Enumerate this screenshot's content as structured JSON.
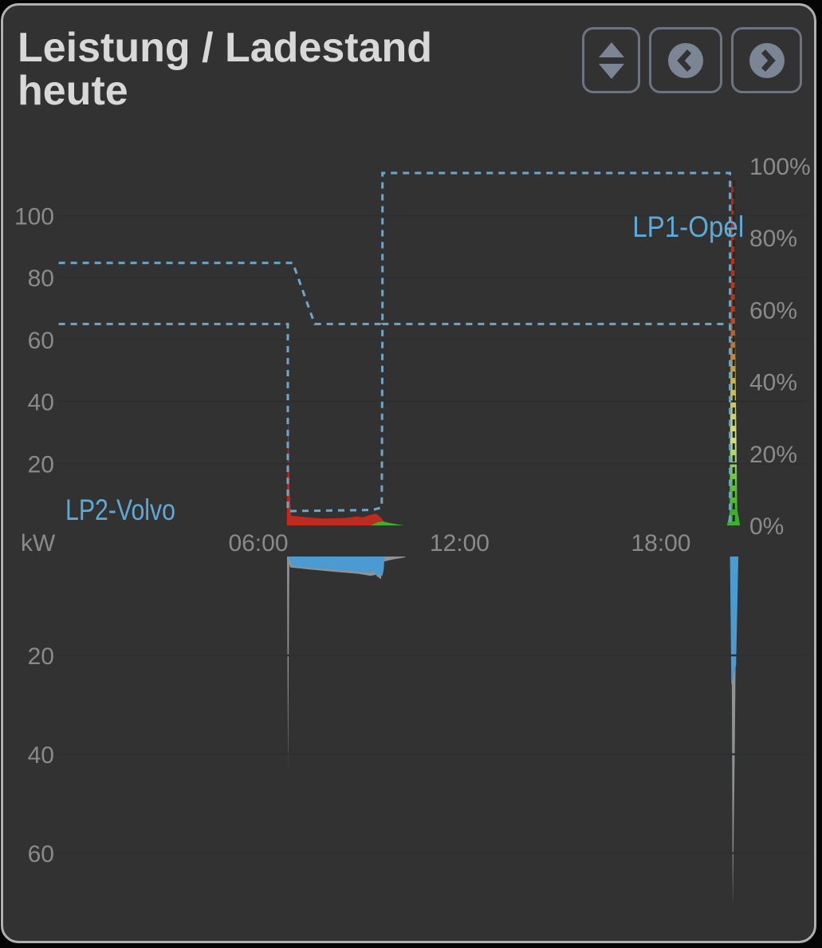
{
  "card": {
    "title": "Leistung / Ladestand heute"
  },
  "toolbar": {
    "buttons": [
      {
        "id": "scale",
        "icon": "up-down-triangles-icon"
      },
      {
        "id": "prev",
        "icon": "chevron-left-circle-icon"
      },
      {
        "id": "next",
        "icon": "chevron-right-circle-icon"
      }
    ]
  },
  "colors": {
    "charging_red": "#bf2a1e",
    "pv_green": "#3fae2e",
    "discharge_blue": "#4b9bd2",
    "aux_gray": "#8f9393",
    "soc_line_blue": "#6ea6c8",
    "soc_label_blue": "#5ea9d6"
  },
  "chart_data": {
    "type": "area",
    "title": "Leistung / Ladestand heute",
    "x_axis": {
      "unit": "time",
      "range_hours": [
        0,
        22.3
      ],
      "ticks": [
        {
          "h": 6,
          "label": "06:00"
        },
        {
          "h": 12,
          "label": "12:00"
        },
        {
          "h": 18,
          "label": "18:00"
        }
      ]
    },
    "y_axis_power_top": {
      "unit_label": "kW",
      "range": [
        0,
        115
      ],
      "ticks": [
        {
          "v": 20,
          "label": "20"
        },
        {
          "v": 40,
          "label": "40"
        },
        {
          "v": 60,
          "label": "60"
        },
        {
          "v": 80,
          "label": "80"
        },
        {
          "v": 100,
          "label": "100"
        }
      ]
    },
    "y_axis_power_bottom": {
      "unit_label": "kW",
      "range": [
        0,
        -77
      ],
      "ticks": [
        {
          "v": 20,
          "label": "20"
        },
        {
          "v": 40,
          "label": "40"
        },
        {
          "v": 60,
          "label": "60"
        }
      ]
    },
    "y_axis_soc": {
      "unit_label": "%",
      "range": [
        0,
        100
      ],
      "ticks": [
        {
          "v": 0,
          "label": "0%"
        },
        {
          "v": 20,
          "label": "20%"
        },
        {
          "v": 40,
          "label": "40%"
        },
        {
          "v": 60,
          "label": "60%"
        },
        {
          "v": 80,
          "label": "80%"
        },
        {
          "v": 100,
          "label": "100%"
        }
      ]
    },
    "soc_lines": [
      {
        "name": "lp1-opel",
        "label": {
          "text": "LP1-Opel",
          "h": 17.15,
          "pct": 80.3,
          "text_length": 140
        },
        "color": "#6ea6c8",
        "points": [
          [
            0.05,
            73
          ],
          [
            7.03,
            73
          ],
          [
            7.68,
            56
          ],
          [
            9.7,
            56
          ],
          [
            9.7,
            98
          ],
          [
            20.06,
            98
          ],
          [
            20.06,
            0.5
          ]
        ]
      },
      {
        "name": "lp2-volvo",
        "label": {
          "text": "LP2-Volvo",
          "h": 0.25,
          "pct": 1.55,
          "text_length": 138
        },
        "color": "#6ea6c8",
        "points": [
          [
            0.05,
            56
          ],
          [
            6.88,
            56
          ],
          [
            6.88,
            4
          ],
          [
            9.4,
            4.3
          ],
          [
            9.68,
            5
          ],
          [
            9.7,
            56
          ],
          [
            20.06,
            56
          ]
        ]
      }
    ],
    "soc_drop_overlay": {
      "h": 20.17,
      "from_pct": 96,
      "to_pct": 1,
      "color": "#222a18"
    },
    "power_areas_top": [
      {
        "name": "charge-morning-red",
        "color": "#bf2a1e",
        "points": [
          [
            6.85,
            0
          ],
          [
            6.89,
            38.5
          ],
          [
            6.93,
            12
          ],
          [
            6.98,
            3.2
          ],
          [
            7.45,
            2.6
          ],
          [
            7.9,
            2.2
          ],
          [
            8.6,
            2.4
          ],
          [
            8.95,
            2.9
          ],
          [
            9.1,
            2.6
          ],
          [
            9.35,
            3.4
          ],
          [
            9.5,
            3.8
          ],
          [
            9.62,
            2.9
          ],
          [
            9.7,
            1.9
          ],
          [
            9.76,
            0.9
          ],
          [
            9.78,
            0
          ]
        ]
      },
      {
        "name": "pv-morning-green",
        "color": "#3fae2e",
        "points": [
          [
            9.35,
            0
          ],
          [
            9.55,
            1.0
          ],
          [
            9.7,
            1.3
          ],
          [
            9.95,
            0.7
          ],
          [
            10.25,
            0.15
          ],
          [
            10.35,
            0
          ]
        ]
      },
      {
        "name": "evening-spike-gradient",
        "gradient": [
          [
            "0%",
            "#b3261d"
          ],
          [
            "38%",
            "#b23a20"
          ],
          [
            "58%",
            "#c4b35c"
          ],
          [
            "75%",
            "#cfe08a"
          ],
          [
            "88%",
            "#5fc03a"
          ],
          [
            "100%",
            "#3cad2e"
          ]
        ],
        "points": [
          [
            20.05,
            0
          ],
          [
            20.1,
            111
          ],
          [
            20.16,
            111
          ],
          [
            20.28,
            0
          ]
        ]
      },
      {
        "name": "evening-green-base",
        "color": "#3fae2e",
        "points": [
          [
            19.97,
            0
          ],
          [
            20.1,
            6.5
          ],
          [
            20.27,
            5.5
          ],
          [
            20.36,
            0
          ]
        ]
      }
    ],
    "power_areas_bottom": [
      {
        "name": "morning-gray-spike",
        "color": "#8f9393",
        "points": [
          [
            6.855,
            0
          ],
          [
            6.885,
            -43.2
          ],
          [
            6.92,
            -5
          ],
          [
            6.93,
            0
          ]
        ]
      },
      {
        "name": "morning-gray-band",
        "color": "#8f9393",
        "points": [
          [
            6.87,
            0
          ],
          [
            6.95,
            -2.2
          ],
          [
            7.5,
            -2.6
          ],
          [
            8.3,
            -3.1
          ],
          [
            9.0,
            -3.5
          ],
          [
            9.35,
            -3.9
          ],
          [
            9.5,
            -3.7
          ],
          [
            9.65,
            -4.6
          ],
          [
            9.75,
            -1.0
          ],
          [
            10.0,
            -0.6
          ],
          [
            10.35,
            -0.2
          ],
          [
            10.4,
            0
          ]
        ]
      },
      {
        "name": "morning-blue-band",
        "color": "#4b9bd2",
        "points": [
          [
            6.9,
            0
          ],
          [
            7.0,
            -1.9
          ],
          [
            7.5,
            -2.3
          ],
          [
            8.3,
            -2.7
          ],
          [
            9.0,
            -3.1
          ],
          [
            9.3,
            -3.3
          ],
          [
            9.45,
            -3.0
          ],
          [
            9.55,
            -4.2
          ],
          [
            9.62,
            -3.4
          ],
          [
            9.7,
            -3.9
          ],
          [
            9.74,
            -2.5
          ],
          [
            9.76,
            0
          ]
        ]
      },
      {
        "name": "evening-gray-spike",
        "color": "#8f9393",
        "points": [
          [
            20.1,
            0
          ],
          [
            20.14,
            -71
          ],
          [
            20.2,
            -40
          ],
          [
            20.26,
            0
          ]
        ]
      },
      {
        "name": "evening-blue-bar",
        "color": "#4b9bd2",
        "points": [
          [
            20.06,
            0
          ],
          [
            20.1,
            -26
          ],
          [
            20.24,
            -22
          ],
          [
            20.31,
            0
          ]
        ]
      }
    ],
    "layout_hints": {
      "grid": "dark-overlay",
      "legend": "inline-labels"
    }
  }
}
